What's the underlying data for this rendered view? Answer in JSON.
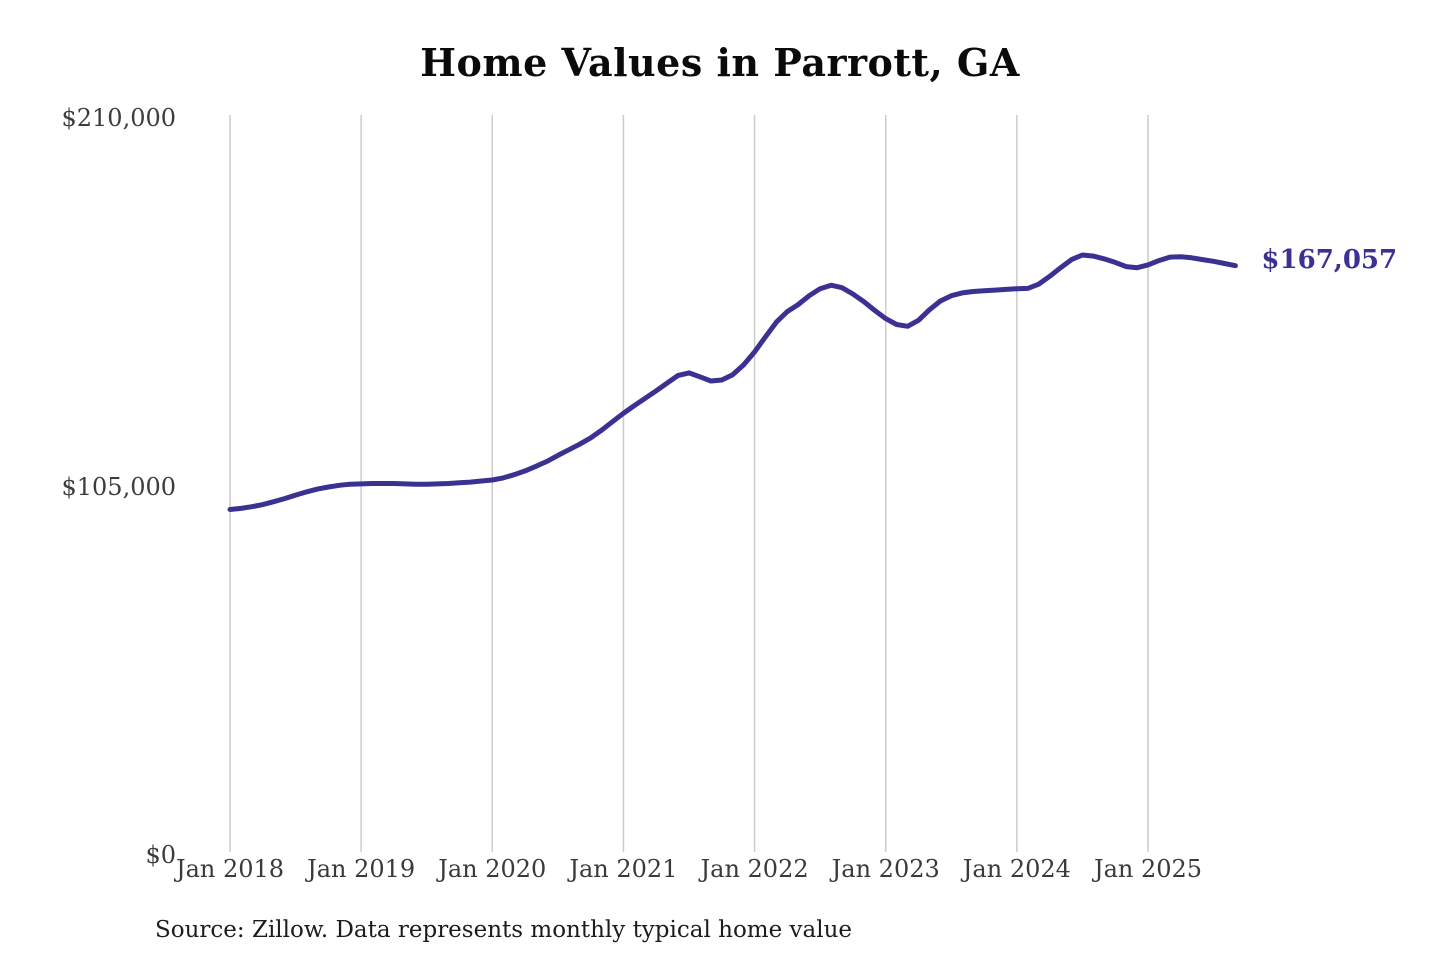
{
  "header": {
    "title": "Home Values in Parrott, GA"
  },
  "footer": {
    "source_note": "Source: Zillow. Data represents monthly typical home value"
  },
  "colors": {
    "line": "#3a3193",
    "gridline": "#cccccc",
    "end_label": "#3a3193",
    "tick_text": "#3d3d3d",
    "title_text": "#0a0a0a"
  },
  "chart_data": {
    "type": "line",
    "title": "Home Values in Parrott, GA",
    "xlabel": "",
    "ylabel": "",
    "ylim": [
      0,
      210000
    ],
    "y_ticks": [
      0,
      105000,
      210000
    ],
    "y_tick_labels": [
      "$0",
      "$105,000",
      "$210,000"
    ],
    "x_tick_labels": [
      "Jan 2018",
      "Jan 2019",
      "Jan 2020",
      "Jan 2021",
      "Jan 2022",
      "Jan 2023",
      "Jan 2024",
      "Jan 2025"
    ],
    "grid": "vertical-only",
    "legend": "none",
    "end_annotation": {
      "text": "$167,057",
      "value": 167057
    },
    "series": [
      {
        "name": "Monthly typical home value",
        "start_month": "2018-01",
        "end_month": "2025-09",
        "values": [
          97600,
          97900,
          98400,
          99000,
          99800,
          100700,
          101700,
          102600,
          103400,
          104000,
          104500,
          104800,
          104900,
          105000,
          105000,
          105000,
          104900,
          104800,
          104800,
          104900,
          105000,
          105200,
          105400,
          105700,
          106000,
          106600,
          107500,
          108600,
          109900,
          111300,
          113000,
          114600,
          116200,
          118000,
          120200,
          122600,
          125000,
          127200,
          129300,
          131400,
          133600,
          135800,
          136500,
          135400,
          134200,
          134500,
          136000,
          138800,
          142500,
          146800,
          151000,
          154000,
          156000,
          158500,
          160500,
          161500,
          160800,
          159000,
          156800,
          154300,
          152000,
          150300,
          149800,
          151500,
          154500,
          157000,
          158500,
          159300,
          159700,
          159900,
          160100,
          160300,
          160500,
          160600,
          161800,
          164000,
          166500,
          168800,
          170100,
          169800,
          169000,
          168000,
          166800,
          166500,
          167300,
          168500,
          169500,
          169600,
          169300,
          168800,
          168300,
          167700,
          167057
        ]
      }
    ]
  }
}
